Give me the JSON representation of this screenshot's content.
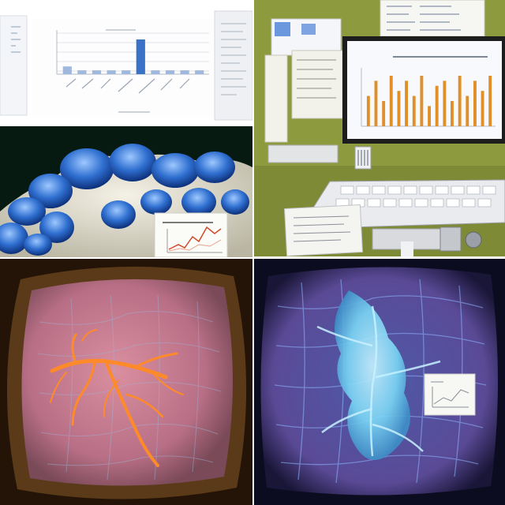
{
  "collage": {
    "panel_count": 5
  },
  "panel_chart": {
    "tick_labels": [],
    "values": [
      2,
      1,
      1,
      1,
      1,
      9,
      1,
      1,
      1,
      1
    ]
  },
  "panel_lab": {
    "bar_values": [
      6,
      9,
      5,
      10,
      7,
      9,
      6,
      10,
      4,
      8,
      9,
      5,
      10,
      6,
      9,
      7,
      10
    ]
  },
  "colors": {
    "lab_wall": "#8e9a3e",
    "specimen_blue": "#2f6fd0",
    "tissue_pink": "#c0788a",
    "vessel_orange": "#ff8a2a",
    "network_cyan": "#7ad6f5"
  }
}
